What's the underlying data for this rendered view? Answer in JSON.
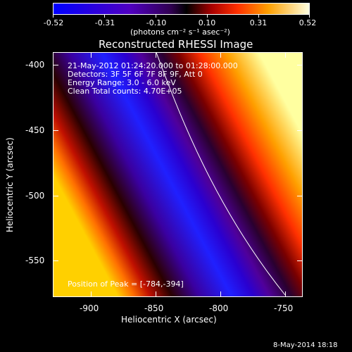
{
  "colorbar": {
    "tick_labels": [
      "-0.52",
      "-0.31",
      "-0.10",
      "0.10",
      "0.31",
      "0.52"
    ],
    "units": "(photons cm⁻² s⁻¹ asec⁻²)"
  },
  "title": "Reconstructed RHESSI Image",
  "annotations": {
    "time_range": "21-May-2012 01:24:20.000 to 01:28:00.000",
    "detectors": "Detectors: 3F 5F 6F 7F 8F 9F, Att 0",
    "energy_range": "Energy Range: 3.0 - 6.0 keV",
    "method": "Clean    Total counts: 4.70E+05",
    "peak": "Position of Peak = [-784,-394]"
  },
  "axes": {
    "xlabel": "Heliocentric X (arcsec)",
    "ylabel": "Heliocentric Y (arcsec)",
    "x_ticks": [
      "-900",
      "-850",
      "-800",
      "-750"
    ],
    "y_ticks": [
      "-400",
      "-450",
      "-500",
      "-550"
    ]
  },
  "footer": {
    "date": "8-May-2014 18:18"
  },
  "colors": {
    "background": "#000000",
    "text": "#ffffff"
  }
}
